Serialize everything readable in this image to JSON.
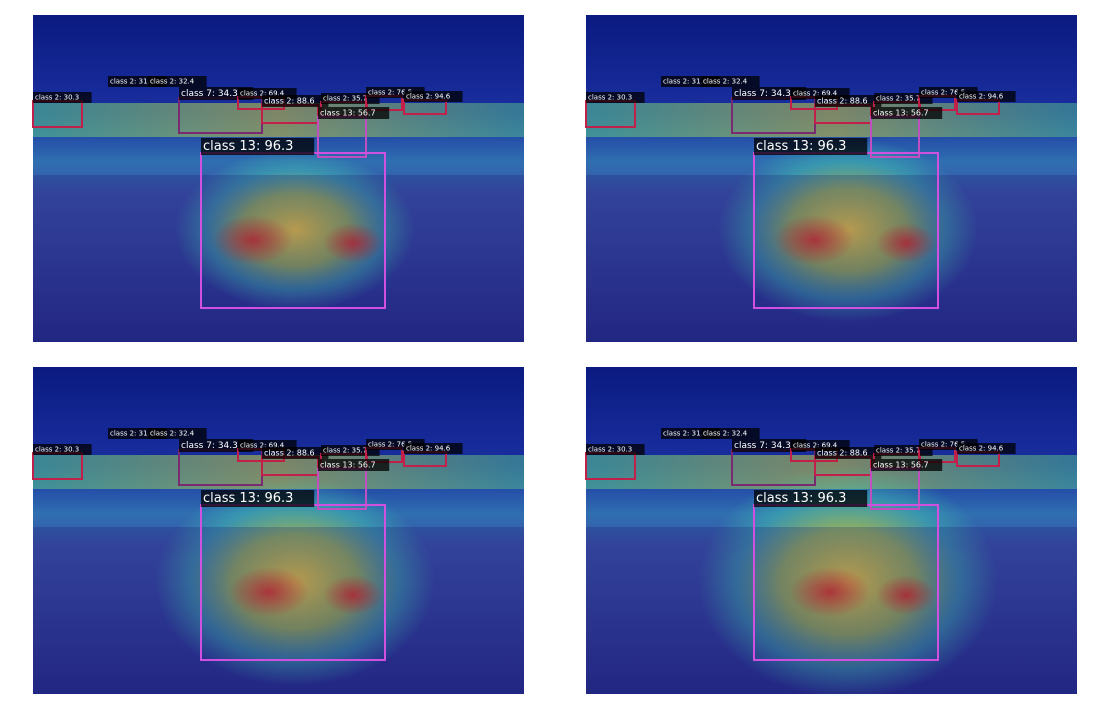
{
  "panels": [
    {},
    {},
    {},
    {}
  ],
  "detections": [
    {
      "label": "class 2: 30.3"
    },
    {
      "label": "class 2: 31.0"
    },
    {
      "label": "class 2: 32.4"
    },
    {
      "label": "class 7: 34.3"
    },
    {
      "label": "class 2: 69.4"
    },
    {
      "label": "class 2: 88.6"
    },
    {
      "label": "class 2: 35.7"
    },
    {
      "label": "class 2: 76.5"
    },
    {
      "label": "class 2: 94.6"
    },
    {
      "label": "class 13: 56.7"
    },
    {
      "label": "class 13: 96.3"
    }
  ]
}
